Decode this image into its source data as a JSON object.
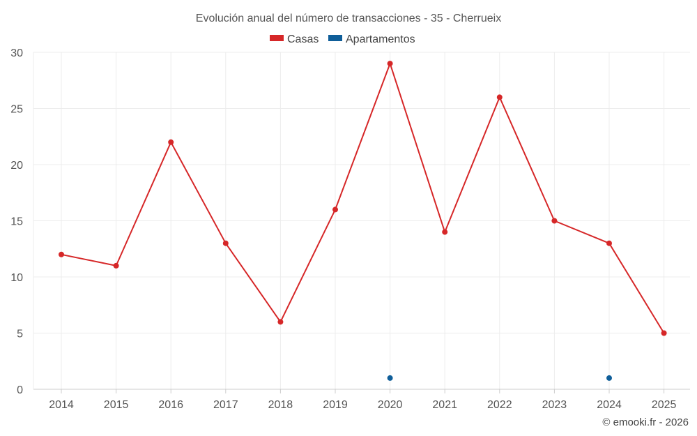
{
  "chart_data": {
    "type": "line",
    "title": "Evolución anual del número de transacciones - 35 - Cherrueix",
    "categories": [
      "2014",
      "2015",
      "2016",
      "2017",
      "2018",
      "2019",
      "2020",
      "2021",
      "2022",
      "2023",
      "2024",
      "2025"
    ],
    "series": [
      {
        "name": "Casas",
        "color": "#d62728",
        "values": [
          12,
          11,
          22,
          13,
          6,
          16,
          29,
          14,
          26,
          15,
          13,
          5
        ]
      },
      {
        "name": "Apartamentos",
        "color": "#0f5e99",
        "values": [
          null,
          null,
          null,
          null,
          null,
          null,
          1,
          null,
          null,
          null,
          1,
          null
        ]
      }
    ],
    "ylim": [
      0,
      30
    ],
    "yticks": [
      0,
      5,
      10,
      15,
      20,
      25,
      30
    ],
    "xlabel": "",
    "ylabel": "",
    "grid": true,
    "legend_position": "top-center"
  },
  "footer": {
    "credit": "© emooki.fr - 2026"
  }
}
